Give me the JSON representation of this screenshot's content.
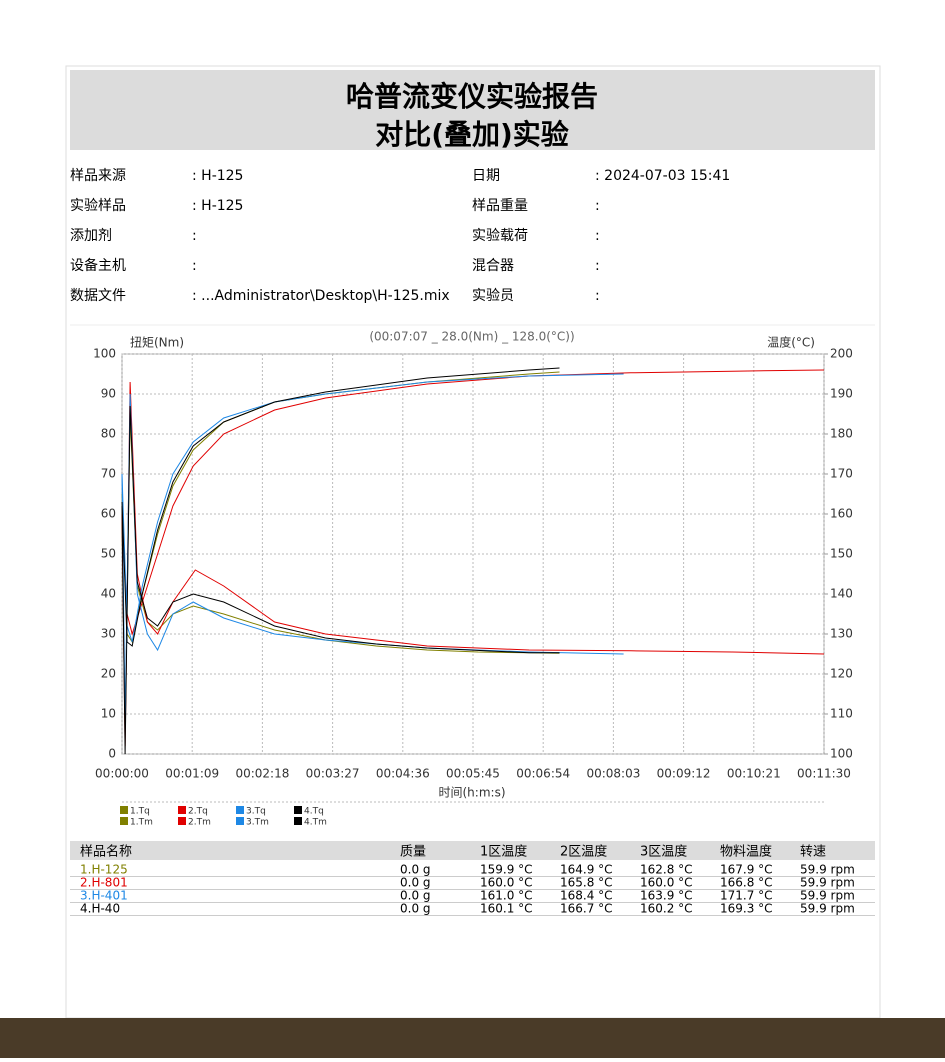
{
  "header": {
    "title": "哈普流变仪实验报告",
    "subtitle": "对比(叠加)实验"
  },
  "info": [
    [
      {
        "label": "样品来源",
        "value": ": H-125"
      },
      {
        "label": "日期",
        "value": ": 2024-07-03  15:41"
      }
    ],
    [
      {
        "label": "实验样品",
        "value": ": H-125"
      },
      {
        "label": "样品重量",
        "value": ":"
      }
    ],
    [
      {
        "label": "添加剂",
        "value": ":"
      },
      {
        "label": "实验载荷",
        "value": ":"
      }
    ],
    [
      {
        "label": "设备主机",
        "value": ":"
      },
      {
        "label": "混合器",
        "value": ":"
      }
    ],
    [
      {
        "label": "数据文件",
        "value": ": ...Administrator\\Desktop\\H-125.mix"
      },
      {
        "label": "实验员",
        "value": ":"
      }
    ]
  ],
  "chart_data": {
    "type": "line",
    "annotation": "(00:07:07 _ 28.0(Nm) _ 128.0(°C))",
    "y_label": "扭矩(Nm)",
    "y2_label": "温度(°C)",
    "x_label": "时间(h:m:s)",
    "grid": true,
    "xlim": [
      0,
      690
    ],
    "xticks": [
      {
        "value": 0,
        "label": "00:00:00"
      },
      {
        "value": 69,
        "label": "00:01:09"
      },
      {
        "value": 138,
        "label": "00:02:18"
      },
      {
        "value": 207,
        "label": "00:03:27"
      },
      {
        "value": 276,
        "label": "00:04:36"
      },
      {
        "value": 345,
        "label": "00:05:45"
      },
      {
        "value": 414,
        "label": "00:06:54"
      },
      {
        "value": 483,
        "label": "00:08:03"
      },
      {
        "value": 552,
        "label": "00:09:12"
      },
      {
        "value": 621,
        "label": "00:10:21"
      },
      {
        "value": 690,
        "label": "00:11:30"
      }
    ],
    "ylim": [
      0,
      100
    ],
    "yticks": [
      0,
      10,
      20,
      30,
      40,
      50,
      60,
      70,
      80,
      90,
      100
    ],
    "y2lim": [
      100,
      200
    ],
    "y2ticks": [
      100,
      110,
      120,
      130,
      140,
      150,
      160,
      170,
      180,
      190,
      200
    ],
    "series": [
      {
        "name": "1.Tq",
        "color": "#808000",
        "x": [
          0,
          3,
          8,
          15,
          25,
          35,
          50,
          70,
          100,
          150,
          200,
          250,
          300,
          350,
          400,
          430
        ],
        "values": [
          58,
          5,
          85,
          42,
          33,
          31,
          35,
          37,
          35,
          31,
          28.5,
          27,
          26,
          25.5,
          25.3,
          25.2
        ]
      },
      {
        "name": "1.Tm",
        "color": "#808000",
        "axis": "y2",
        "x": [
          0,
          5,
          10,
          20,
          35,
          50,
          70,
          100,
          150,
          200,
          300,
          400,
          430
        ],
        "values": [
          165,
          130,
          128,
          140,
          155,
          167,
          176,
          183,
          188,
          190,
          193,
          195,
          195.5
        ]
      },
      {
        "name": "2.Tq",
        "color": "#e00000",
        "x": [
          0,
          3,
          8,
          15,
          25,
          35,
          50,
          72,
          100,
          150,
          200,
          250,
          300,
          400,
          500,
          600,
          690
        ],
        "values": [
          60,
          2,
          93,
          45,
          33,
          30,
          38,
          46,
          42,
          33,
          30,
          28.5,
          27,
          26,
          25.8,
          25.5,
          25
        ]
      },
      {
        "name": "2.Tm",
        "color": "#e00000",
        "axis": "y2",
        "x": [
          0,
          5,
          10,
          20,
          35,
          50,
          70,
          100,
          150,
          200,
          300,
          400,
          500,
          600,
          690
        ],
        "values": [
          160,
          135,
          130,
          138,
          150,
          162,
          172,
          180,
          186,
          189,
          192.5,
          194.5,
          195.3,
          195.7,
          196
        ]
      },
      {
        "name": "3.Tq",
        "color": "#1e88e5",
        "x": [
          0,
          3,
          8,
          15,
          25,
          35,
          50,
          70,
          100,
          150,
          200,
          250,
          300,
          400,
          493
        ],
        "values": [
          70,
          8,
          90,
          40,
          30,
          26,
          35,
          38,
          34,
          30,
          28.5,
          27.5,
          26.5,
          25.5,
          25
        ]
      },
      {
        "name": "3.Tm",
        "color": "#1e88e5",
        "axis": "y2",
        "x": [
          0,
          5,
          10,
          20,
          35,
          50,
          70,
          100,
          150,
          200,
          300,
          400,
          493
        ],
        "values": [
          170,
          132,
          128,
          142,
          158,
          170,
          178,
          184,
          188,
          190,
          193,
          194.5,
          195
        ]
      },
      {
        "name": "4.Tq",
        "color": "#000000",
        "x": [
          0,
          3,
          8,
          15,
          25,
          35,
          50,
          70,
          100,
          150,
          200,
          250,
          300,
          400,
          430
        ],
        "values": [
          62,
          0,
          87,
          43,
          34,
          32,
          38,
          40,
          38,
          32,
          29,
          27.5,
          26.5,
          25.3,
          25.3
        ]
      },
      {
        "name": "4.Tm",
        "color": "#000000",
        "axis": "y2",
        "x": [
          0,
          5,
          10,
          20,
          35,
          50,
          70,
          100,
          150,
          200,
          300,
          400,
          430
        ],
        "values": [
          163,
          128,
          127,
          140,
          156,
          168,
          177,
          183,
          188,
          190.5,
          194,
          196,
          196.5
        ]
      }
    ]
  },
  "table": {
    "header": [
      "样品名称",
      "质量",
      "1区温度",
      "2区温度",
      "3区温度",
      "物料温度",
      "转速"
    ],
    "rows": [
      [
        "1.H-125",
        "0.0 g",
        "159.9 °C",
        "164.9 °C",
        "162.8 °C",
        "167.9 °C",
        "59.9 rpm"
      ],
      [
        "2.H-801",
        "0.0 g",
        "160.0 °C",
        "165.8 °C",
        "160.0 °C",
        "166.8 °C",
        "59.9 rpm"
      ],
      [
        "3.H-401",
        "0.0 g",
        "161.0 °C",
        "168.4 °C",
        "163.9 °C",
        "171.7 °C",
        "59.9 rpm"
      ],
      [
        "4.H-40",
        "0.0 g",
        "160.1 °C",
        "166.7 °C",
        "160.2 °C",
        "169.3 °C",
        "59.9 rpm"
      ]
    ]
  }
}
